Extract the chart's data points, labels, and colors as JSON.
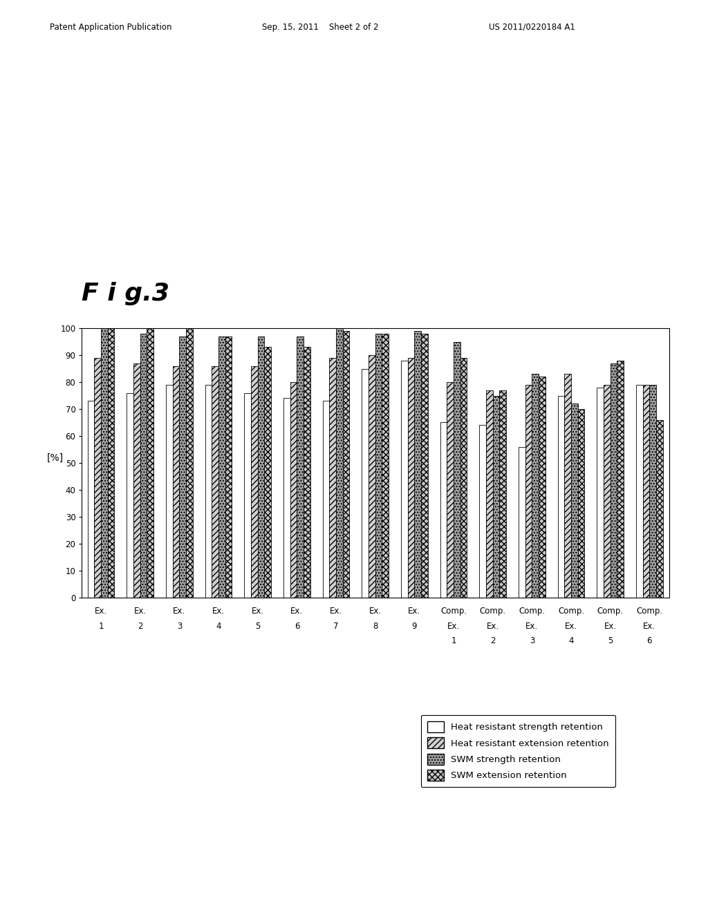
{
  "title": "F i g.3",
  "ylabel": "[%]",
  "ylim": [
    0,
    100
  ],
  "yticks": [
    0,
    10,
    20,
    30,
    40,
    50,
    60,
    70,
    80,
    90,
    100
  ],
  "series_heat_strength": [
    73,
    76,
    79,
    79,
    76,
    74,
    73,
    85,
    88,
    65,
    64,
    56,
    75,
    78,
    79
  ],
  "series_heat_extension": [
    89,
    87,
    86,
    86,
    86,
    80,
    89,
    90,
    89,
    80,
    77,
    79,
    83,
    79,
    79
  ],
  "series_swm_strength": [
    100,
    98,
    97,
    97,
    97,
    97,
    100,
    98,
    99,
    95,
    75,
    83,
    72,
    87,
    79
  ],
  "series_swm_extension": [
    100,
    100,
    100,
    97,
    93,
    93,
    99,
    98,
    98,
    89,
    77,
    82,
    70,
    88,
    66
  ],
  "legend_labels": [
    "Heat resistant strength retention",
    "Heat resistant extension retention",
    "SWM strength retention",
    "SWM extension retention"
  ],
  "bar_colors": [
    "#ffffff",
    "#d0d0d0",
    "#a0a0a0",
    "#c8c8c8"
  ],
  "bar_hatch": [
    "",
    "////",
    "....",
    "xxxx"
  ],
  "bar_edgecolor": "#000000",
  "bar_width": 0.17,
  "background_color": "#ffffff",
  "fontsize_title": 26,
  "fontsize_ylabel": 10,
  "fontsize_tick": 8.5,
  "fontsize_legend": 9.5,
  "fontsize_header": 8.5,
  "header_left": "Patent Application Publication",
  "header_mid": "Sep. 15, 2011    Sheet 2 of 2",
  "header_right": "US 2011/0220184 A1"
}
